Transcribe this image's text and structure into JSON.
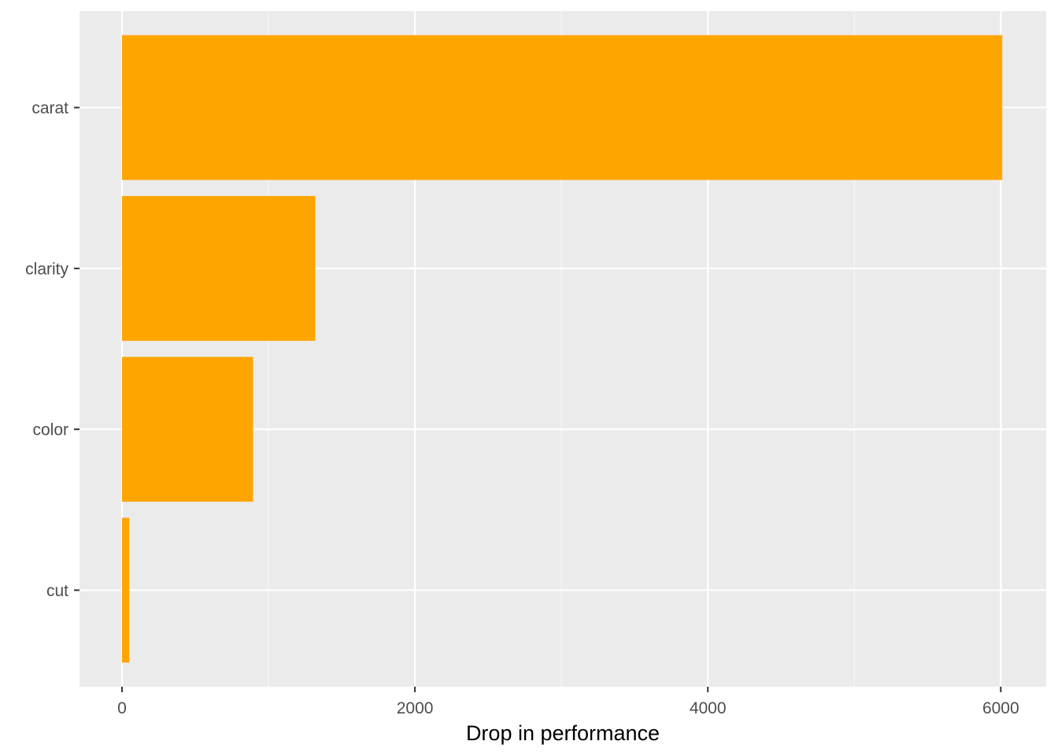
{
  "chart_data": {
    "type": "bar",
    "orientation": "horizontal",
    "categories": [
      "carat",
      "clarity",
      "color",
      "cut"
    ],
    "values": [
      6010,
      1320,
      895,
      50
    ],
    "title": "",
    "xlabel": "Drop in performance",
    "ylabel": "",
    "xlim": [
      -290,
      6310
    ],
    "xticks": [
      0,
      2000,
      4000,
      6000
    ],
    "xtick_labels": [
      "0",
      "2000",
      "4000",
      "6000"
    ],
    "grid": true,
    "legend": "none",
    "colors": {
      "bar": "#FFA500",
      "panel_background": "#EBEBEB",
      "grid_major": "#FFFFFF",
      "grid_minor": "#F7F7F7",
      "tick_text": "#4D4D4D",
      "axis_title": "#000000"
    }
  }
}
